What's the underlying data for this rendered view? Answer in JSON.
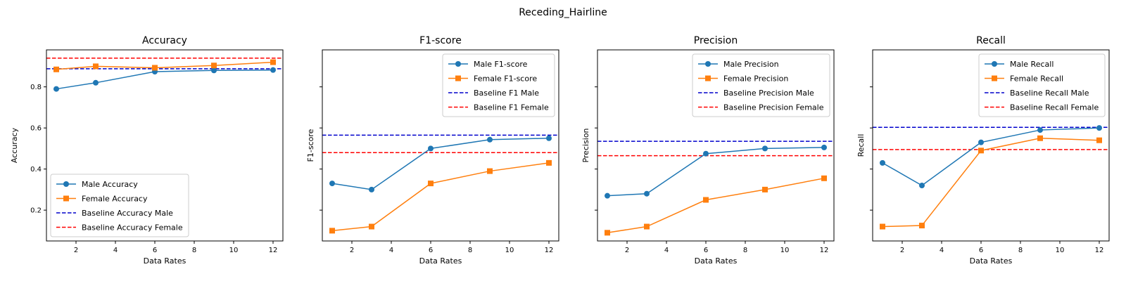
{
  "figure": {
    "suptitle": "Receding_Hairline"
  },
  "colors": {
    "male": "#1f77b4",
    "female": "#ff7f0e",
    "baseline_male": "#0000cc",
    "baseline_female": "#ff0000",
    "axes": "#000000",
    "legend_border": "#cccccc"
  },
  "chart_data": [
    {
      "type": "line",
      "title": "Accuracy",
      "xlabel": "Data Rates",
      "ylabel": "Accuracy",
      "x": [
        1,
        3,
        6,
        9,
        12
      ],
      "xlim": [
        0.5,
        12.5
      ],
      "ylim": [
        0.05,
        0.98
      ],
      "xticks": [
        2,
        4,
        6,
        8,
        10,
        12
      ],
      "yticks": [
        0.2,
        0.4,
        0.6,
        0.8
      ],
      "ytick_labels_visible": true,
      "legend_position": "lower-left",
      "series": [
        {
          "name": "Male Accuracy",
          "values": [
            0.79,
            0.82,
            0.874,
            0.88,
            0.882
          ]
        },
        {
          "name": "Female Accuracy",
          "values": [
            0.885,
            0.9,
            0.893,
            0.904,
            0.92
          ]
        }
      ],
      "baselines": [
        {
          "name": "Baseline Accuracy Male",
          "value": 0.888
        },
        {
          "name": "Baseline Accuracy Female",
          "value": 0.94
        }
      ]
    },
    {
      "type": "line",
      "title": "F1-score",
      "xlabel": "Data Rates",
      "ylabel": "F1-score",
      "x": [
        1,
        3,
        6,
        9,
        12
      ],
      "xlim": [
        0.5,
        12.5
      ],
      "ylim": [
        0.05,
        0.98
      ],
      "xticks": [
        2,
        4,
        6,
        8,
        10,
        12
      ],
      "yticks": [
        0.2,
        0.4,
        0.6,
        0.8
      ],
      "ytick_labels_visible": false,
      "legend_position": "upper-right",
      "series": [
        {
          "name": "Male F1-score",
          "values": [
            0.33,
            0.3,
            0.5,
            0.543,
            0.55
          ]
        },
        {
          "name": "Female F1-score",
          "values": [
            0.1,
            0.12,
            0.33,
            0.39,
            0.43
          ]
        }
      ],
      "baselines": [
        {
          "name": "Baseline F1 Male",
          "value": 0.565
        },
        {
          "name": "Baseline F1 Female",
          "value": 0.48
        }
      ]
    },
    {
      "type": "line",
      "title": "Precision",
      "xlabel": "Data Rates",
      "ylabel": "Precision",
      "x": [
        1,
        3,
        6,
        9,
        12
      ],
      "xlim": [
        0.5,
        12.5
      ],
      "ylim": [
        0.05,
        0.98
      ],
      "xticks": [
        2,
        4,
        6,
        8,
        10,
        12
      ],
      "yticks": [
        0.2,
        0.4,
        0.6,
        0.8
      ],
      "ytick_labels_visible": false,
      "legend_position": "upper-right",
      "series": [
        {
          "name": "Male Precision",
          "values": [
            0.27,
            0.28,
            0.475,
            0.5,
            0.505
          ]
        },
        {
          "name": "Female Precision",
          "values": [
            0.09,
            0.12,
            0.25,
            0.3,
            0.355
          ]
        }
      ],
      "baselines": [
        {
          "name": "Baseline Precision Male",
          "value": 0.535
        },
        {
          "name": "Baseline Precision Female",
          "value": 0.465
        }
      ]
    },
    {
      "type": "line",
      "title": "Recall",
      "xlabel": "Data Rates",
      "ylabel": "Recall",
      "x": [
        1,
        3,
        6,
        9,
        12
      ],
      "xlim": [
        0.5,
        12.5
      ],
      "ylim": [
        0.05,
        0.98
      ],
      "xticks": [
        2,
        4,
        6,
        8,
        10,
        12
      ],
      "yticks": [
        0.2,
        0.4,
        0.6,
        0.8
      ],
      "ytick_labels_visible": false,
      "legend_position": "upper-right",
      "series": [
        {
          "name": "Male Recall",
          "values": [
            0.43,
            0.32,
            0.53,
            0.59,
            0.6
          ]
        },
        {
          "name": "Female Recall",
          "values": [
            0.12,
            0.125,
            0.49,
            0.55,
            0.54
          ]
        }
      ],
      "baselines": [
        {
          "name": "Baseline Recall Male",
          "value": 0.603
        },
        {
          "name": "Baseline Recall Female",
          "value": 0.495
        }
      ]
    }
  ]
}
